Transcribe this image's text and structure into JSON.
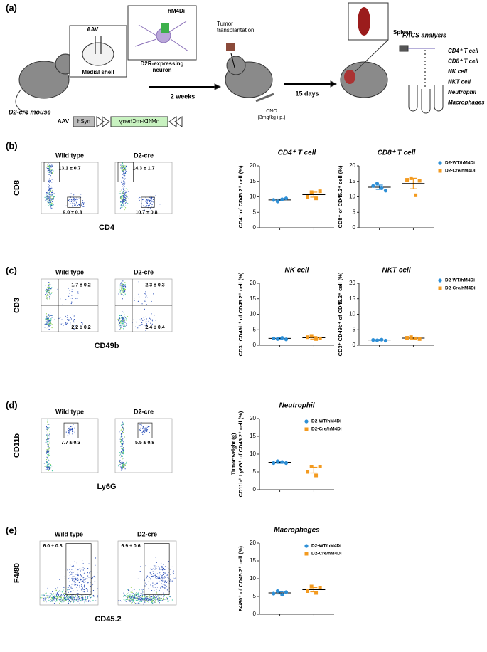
{
  "figure": {
    "panel_labels": [
      "(a)",
      "(b)",
      "(c)",
      "(d)",
      "(e)"
    ],
    "schematic": {
      "mouse_label": "D2-cre mouse",
      "aav": "AAV",
      "brain_region": "Medial shell",
      "receptor": "hM4Di",
      "neuron_lines": [
        "D2R-expressing",
        "neuron"
      ],
      "step1": "2 weeks",
      "tumor_lines": [
        "Tumor",
        "transplantation"
      ],
      "cno": "CNO",
      "cno_dose": "(3mg/kg i.p.)",
      "step2": "15 days",
      "organ": "Spleen",
      "analysis": "FACS analysis",
      "cells": [
        "CD4⁺ T cell",
        "CD8⁺ T cell",
        "NK cell",
        "NKT cell",
        "Neutrophil",
        "Macrophages"
      ],
      "construct": [
        "AAV",
        "hSyn",
        "hM4Di-mCherry"
      ]
    },
    "flow": [
      {
        "x_label": "CD4",
        "y_label": "CD8",
        "plots": [
          {
            "title": "Wild type",
            "gates": [
              "13.1 ± 0.7",
              "9.0 ± 0.3"
            ]
          },
          {
            "title": "D2-cre",
            "gates": [
              "14.3 ± 1.7",
              "10.7 ± 0.8"
            ]
          }
        ]
      },
      {
        "x_label": "CD49b",
        "y_label": "CD3",
        "plots": [
          {
            "title": "Wild type",
            "gates": [
              "1.7 ± 0.2",
              "2.2 ± 0.2"
            ]
          },
          {
            "title": "D2-cre",
            "gates": [
              "2.3 ± 0.3",
              "2.4 ± 0.4"
            ]
          }
        ]
      },
      {
        "x_label": "Ly6G",
        "y_label": "CD11b",
        "plots": [
          {
            "title": "Wild type",
            "gates": [
              "7.7 ± 0.3"
            ]
          },
          {
            "title": "D2-cre",
            "gates": [
              "5.5 ± 0.8"
            ]
          }
        ]
      },
      {
        "x_label": "CD45.2",
        "y_label": "F4/80",
        "plots": [
          {
            "title": "Wild type",
            "gates": [
              "6.0 ± 0.3"
            ]
          },
          {
            "title": "D2-cre",
            "gates": [
              "6.9 ± 0.6"
            ]
          }
        ]
      }
    ]
  },
  "chart_data": [
    {
      "type": "dot",
      "title": "CD4⁺ T cell",
      "y_label": "CD4⁺ of CD45.2⁺ cell (%)",
      "ylim": [
        0,
        20
      ],
      "yticks": [
        0,
        5,
        10,
        15,
        20
      ],
      "series": [
        {
          "color": "#2e8fd6",
          "values": [
            9.0,
            8.5,
            9.2,
            9.5
          ],
          "mean": 9.0,
          "sem": 0.3
        },
        {
          "color": "#f39a1f",
          "values": [
            10.0,
            11.5,
            9.5,
            11.8
          ],
          "mean": 10.7,
          "sem": 0.8
        }
      ]
    },
    {
      "type": "dot",
      "title": "CD8⁺ T cell",
      "y_label": "CD8⁺ of CD45.2⁺ cell (%)",
      "ylim": [
        0,
        20
      ],
      "yticks": [
        0,
        5,
        10,
        15,
        20
      ],
      "legend": "right",
      "series": [
        {
          "name": "D2-WT/hM4Di",
          "color": "#2e8fd6",
          "values": [
            13.5,
            14.3,
            12.8,
            12.0
          ],
          "mean": 13.1,
          "sem": 0.7
        },
        {
          "name": "D2-Cre/hM4Di",
          "color": "#f39a1f",
          "values": [
            15.5,
            16.0,
            10.5,
            15.2
          ],
          "mean": 14.3,
          "sem": 1.7
        }
      ]
    },
    {
      "type": "dot",
      "title": "NK cell",
      "y_label": "CD3⁻ CD49b⁺ of CD45.2⁺ cell (%)",
      "ylim": [
        0,
        20
      ],
      "yticks": [
        0,
        5,
        10,
        15,
        20
      ],
      "series": [
        {
          "color": "#2e8fd6",
          "values": [
            2.2,
            2.0,
            2.4,
            1.9
          ],
          "mean": 2.2,
          "sem": 0.2
        },
        {
          "color": "#f39a1f",
          "values": [
            2.6,
            3.0,
            2.0,
            2.2
          ],
          "mean": 2.4,
          "sem": 0.4
        }
      ]
    },
    {
      "type": "dot",
      "title": "NKT cell",
      "y_label": "CD3⁺ CD49b⁺ of CD45.2⁺ cell (%)",
      "ylim": [
        0,
        20
      ],
      "yticks": [
        0,
        5,
        10,
        15,
        20
      ],
      "legend": "right",
      "series": [
        {
          "name": "D2-WT/hM4Di",
          "color": "#2e8fd6",
          "values": [
            1.7,
            1.6,
            1.8,
            1.5
          ],
          "mean": 1.7,
          "sem": 0.2
        },
        {
          "name": "D2-Cre/hM4Di",
          "color": "#f39a1f",
          "values": [
            2.4,
            2.6,
            2.2,
            2.0
          ],
          "mean": 2.3,
          "sem": 0.3
        }
      ]
    },
    {
      "type": "dot",
      "title": "Neutrophil",
      "y_label": "CD11b⁺ Ly6G⁺ of CD45.2⁺ cell (%)",
      "overlay_label": "Tumor weight (g)",
      "ylim": [
        0,
        20
      ],
      "yticks": [
        0,
        5,
        10,
        15,
        20
      ],
      "legend": "upper right",
      "series": [
        {
          "name": "D2-WT/hM4Di",
          "color": "#2e8fd6",
          "values": [
            7.5,
            8.0,
            7.8,
            7.5
          ],
          "mean": 7.7,
          "sem": 0.3
        },
        {
          "name": "D2-Cre/hM4Di",
          "color": "#f39a1f",
          "values": [
            5.0,
            6.5,
            4.0,
            6.5
          ],
          "mean": 5.5,
          "sem": 0.8
        }
      ]
    },
    {
      "type": "dot",
      "title": "Macrophages",
      "y_label": "F4/80⁺ of CD45.2⁺ cell (%)",
      "ylim": [
        0,
        20
      ],
      "yticks": [
        0,
        5,
        10,
        15,
        20
      ],
      "legend": "upper right",
      "series": [
        {
          "name": "D2-WT/hM4Di",
          "color": "#2e8fd6",
          "values": [
            5.8,
            6.5,
            5.5,
            6.2
          ],
          "mean": 6.0,
          "sem": 0.3
        },
        {
          "name": "D2-Cre/hM4Di",
          "color": "#f39a1f",
          "values": [
            6.5,
            7.8,
            6.0,
            7.5
          ],
          "mean": 6.9,
          "sem": 0.6
        }
      ]
    }
  ]
}
